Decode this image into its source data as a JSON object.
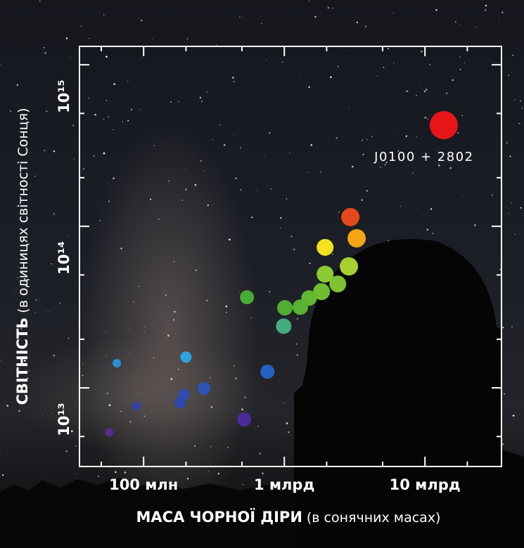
{
  "chart_data": {
    "type": "scatter",
    "xlabel": "МАСА ЧОРНОЇ ДІРИ",
    "xlabel_unit": "(в сонячних масах)",
    "ylabel": "СВІТНІСТЬ",
    "ylabel_unit": "(в одиницях світності Сонця)",
    "xscale": "log",
    "yscale": "log",
    "xlim": [
      35000000,
      35000000000
    ],
    "ylim": [
      3260000000000,
      1300000000000000
    ],
    "xticks": [
      {
        "value": 100000000,
        "label": "100 млн"
      },
      {
        "value": 1000000000,
        "label": "1 млрд"
      },
      {
        "value": 10000000000,
        "label": "10 млрд"
      }
    ],
    "xminorticks": [
      50000000,
      200000000,
      500000000,
      2000000000,
      5000000000,
      20000000000
    ],
    "yticks": [
      {
        "value": 10000000000000,
        "label": "10¹³"
      },
      {
        "value": 100000000000000,
        "label": "10¹⁴"
      },
      {
        "value": 1000000000000000,
        "label": "10¹⁵"
      }
    ],
    "yminorticks": [
      5000000000000,
      20000000000000,
      50000000000000,
      200000000000000,
      500000000000000
    ],
    "x": [
      13600000000,
      2950000000,
      3270000000,
      1950000000,
      2880000000,
      1950000000,
      2400000000,
      1840000000,
      1500000000,
      1300000000,
      1010000000,
      543000000,
      990000000,
      200000000,
      64500000,
      760000000,
      269000000,
      193000000,
      182000000,
      89000000,
      519000000,
      57000000
    ],
    "y": [
      423000000000000,
      114000000000000,
      84300000000000,
      74100000000000,
      56500000000000,
      50600000000000,
      44000000000000,
      39400000000000,
      36000000000000,
      31600000000000,
      31300000000000,
      36400000000000,
      24100000000000,
      15500000000000,
      14200000000000,
      12600000000000,
      9900000000000,
      9050000000000,
      8100000000000,
      7700000000000,
      6370000000000,
      5320000000000
    ],
    "sizes": [
      20,
      13,
      13,
      12,
      13,
      12,
      12,
      12,
      11,
      11,
      11,
      10,
      11,
      8,
      6,
      10,
      9,
      8,
      8,
      6,
      10,
      6
    ],
    "colors": [
      "#e8161b",
      "#e3471c",
      "#f3a514",
      "#f1e21b",
      "#a6d032",
      "#8ccb33",
      "#7cc233",
      "#6fbd33",
      "#62b833",
      "#58b333",
      "#4fae33",
      "#48ab35",
      "#45ad7d",
      "#2ea3e0",
      "#2c8fd5",
      "#2362c0",
      "#2b54b5",
      "#2e4db2",
      "#2f46ad",
      "#3142a8",
      "#4b2c96",
      "#5a2a8c"
    ],
    "annotation": "J0100 + 2802"
  }
}
